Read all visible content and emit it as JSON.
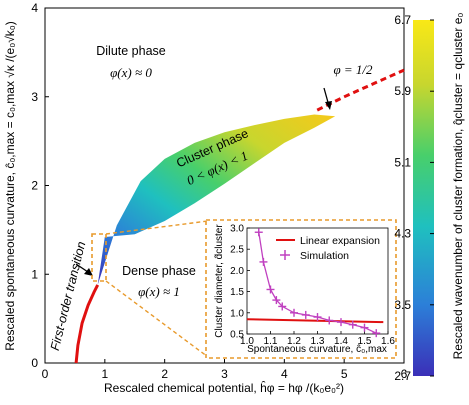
{
  "main": {
    "xlabel": "Rescaled chemical potential, ĥφ = hφ /(k₀e₀²)",
    "ylabel": "Rescaled spontaneous curvature, ĉ₀,max = c₀,max √κ /(e₀√k₀)",
    "xticks": [
      "0",
      "1",
      "2",
      "3",
      "4",
      "5",
      "6"
    ],
    "yticks": [
      "0",
      "1",
      "2",
      "3",
      "4"
    ],
    "xlim": [
      0,
      6
    ],
    "ylim": [
      0,
      4
    ]
  },
  "colorbar": {
    "label": "Rescaled wavenumber of cluster formation, q̂cluster = qcluster e₀",
    "ticks": [
      "2.7",
      "3.5",
      "4.3",
      "5.1",
      "5.9",
      "6.7"
    ],
    "range": [
      2.7,
      6.7
    ],
    "colors": [
      "#3b2fb8",
      "#2c7fd8",
      "#1fc0bf",
      "#48cf6b",
      "#c8d62e",
      "#f9e816"
    ]
  },
  "labels": {
    "dilute_title": "Dilute phase",
    "dilute_eq": "φ(x) ≈ 0",
    "cluster_title": "Cluster phase",
    "cluster_eq": "0 < φ(x) < 1",
    "dense_title": "Dense phase",
    "dense_eq": "φ(x) ≈ 1",
    "transition": "First-order transition",
    "half": "φ = 1/2"
  },
  "inset": {
    "xlabel": "Spontaneous curvature, ĉ₀,max",
    "ylabel": "Cluster diameter, d̂cluster",
    "xticks": [
      "1.0",
      "1.1",
      "1.2",
      "1.3",
      "1.4",
      "1.5",
      "1.6"
    ],
    "yticks": [
      "0.5",
      "1.0",
      "1.5",
      "2.0",
      "2.5",
      "3.0"
    ],
    "legend_linear": "Linear expansion",
    "legend_sim": "Simulation"
  },
  "chart_data": [
    {
      "type": "area",
      "description_key": "phase diagram",
      "xlabel": "Rescaled chemical potential",
      "ylabel": "Rescaled spontaneous curvature",
      "xlim": [
        0,
        6
      ],
      "ylim": [
        0,
        4
      ],
      "grid": false,
      "series": [
        {
          "name": "first-order transition",
          "x": [
            0.52,
            0.55,
            0.62,
            0.72,
            0.82,
            0.88
          ],
          "y": [
            0.0,
            0.2,
            0.45,
            0.65,
            0.8,
            0.88
          ],
          "color": "#e01010"
        },
        {
          "name": "φ = 1/2",
          "x": [
            4.55,
            5.0,
            5.5,
            6.0
          ],
          "y": [
            2.85,
            3.0,
            3.15,
            3.3
          ],
          "color": "#e01010",
          "style": "dashed"
        }
      ],
      "cluster_region_upper": {
        "x": [
          0.88,
          1.2,
          1.6,
          2.0,
          2.5,
          3.0,
          3.5,
          4.0,
          4.5,
          4.85
        ],
        "y": [
          0.88,
          1.55,
          2.05,
          2.3,
          2.48,
          2.6,
          2.68,
          2.75,
          2.8,
          2.78
        ]
      },
      "cluster_region_lower": {
        "x": [
          0.88,
          1.0,
          1.5,
          2.0,
          2.5,
          3.0,
          3.5,
          4.0,
          4.5,
          4.85
        ],
        "y": [
          0.88,
          1.42,
          1.45,
          1.6,
          1.8,
          2.02,
          2.25,
          2.48,
          2.65,
          2.78
        ]
      }
    },
    {
      "type": "line",
      "xlabel": "Spontaneous curvature",
      "ylabel": "Cluster diameter",
      "xlim": [
        1.0,
        1.6
      ],
      "ylim": [
        0.5,
        3.0
      ],
      "series": [
        {
          "name": "Linear expansion",
          "x": [
            1.0,
            1.58
          ],
          "y": [
            0.85,
            0.78
          ],
          "color": "#e01010"
        },
        {
          "name": "Simulation",
          "x": [
            1.05,
            1.07,
            1.1,
            1.125,
            1.15,
            1.2,
            1.25,
            1.3,
            1.35,
            1.4,
            1.45,
            1.5,
            1.55
          ],
          "y": [
            2.9,
            2.2,
            1.55,
            1.3,
            1.15,
            1.0,
            0.95,
            0.9,
            0.82,
            0.78,
            0.72,
            0.65,
            0.52
          ],
          "color": "#c040c0",
          "marker": "+"
        }
      ]
    }
  ]
}
